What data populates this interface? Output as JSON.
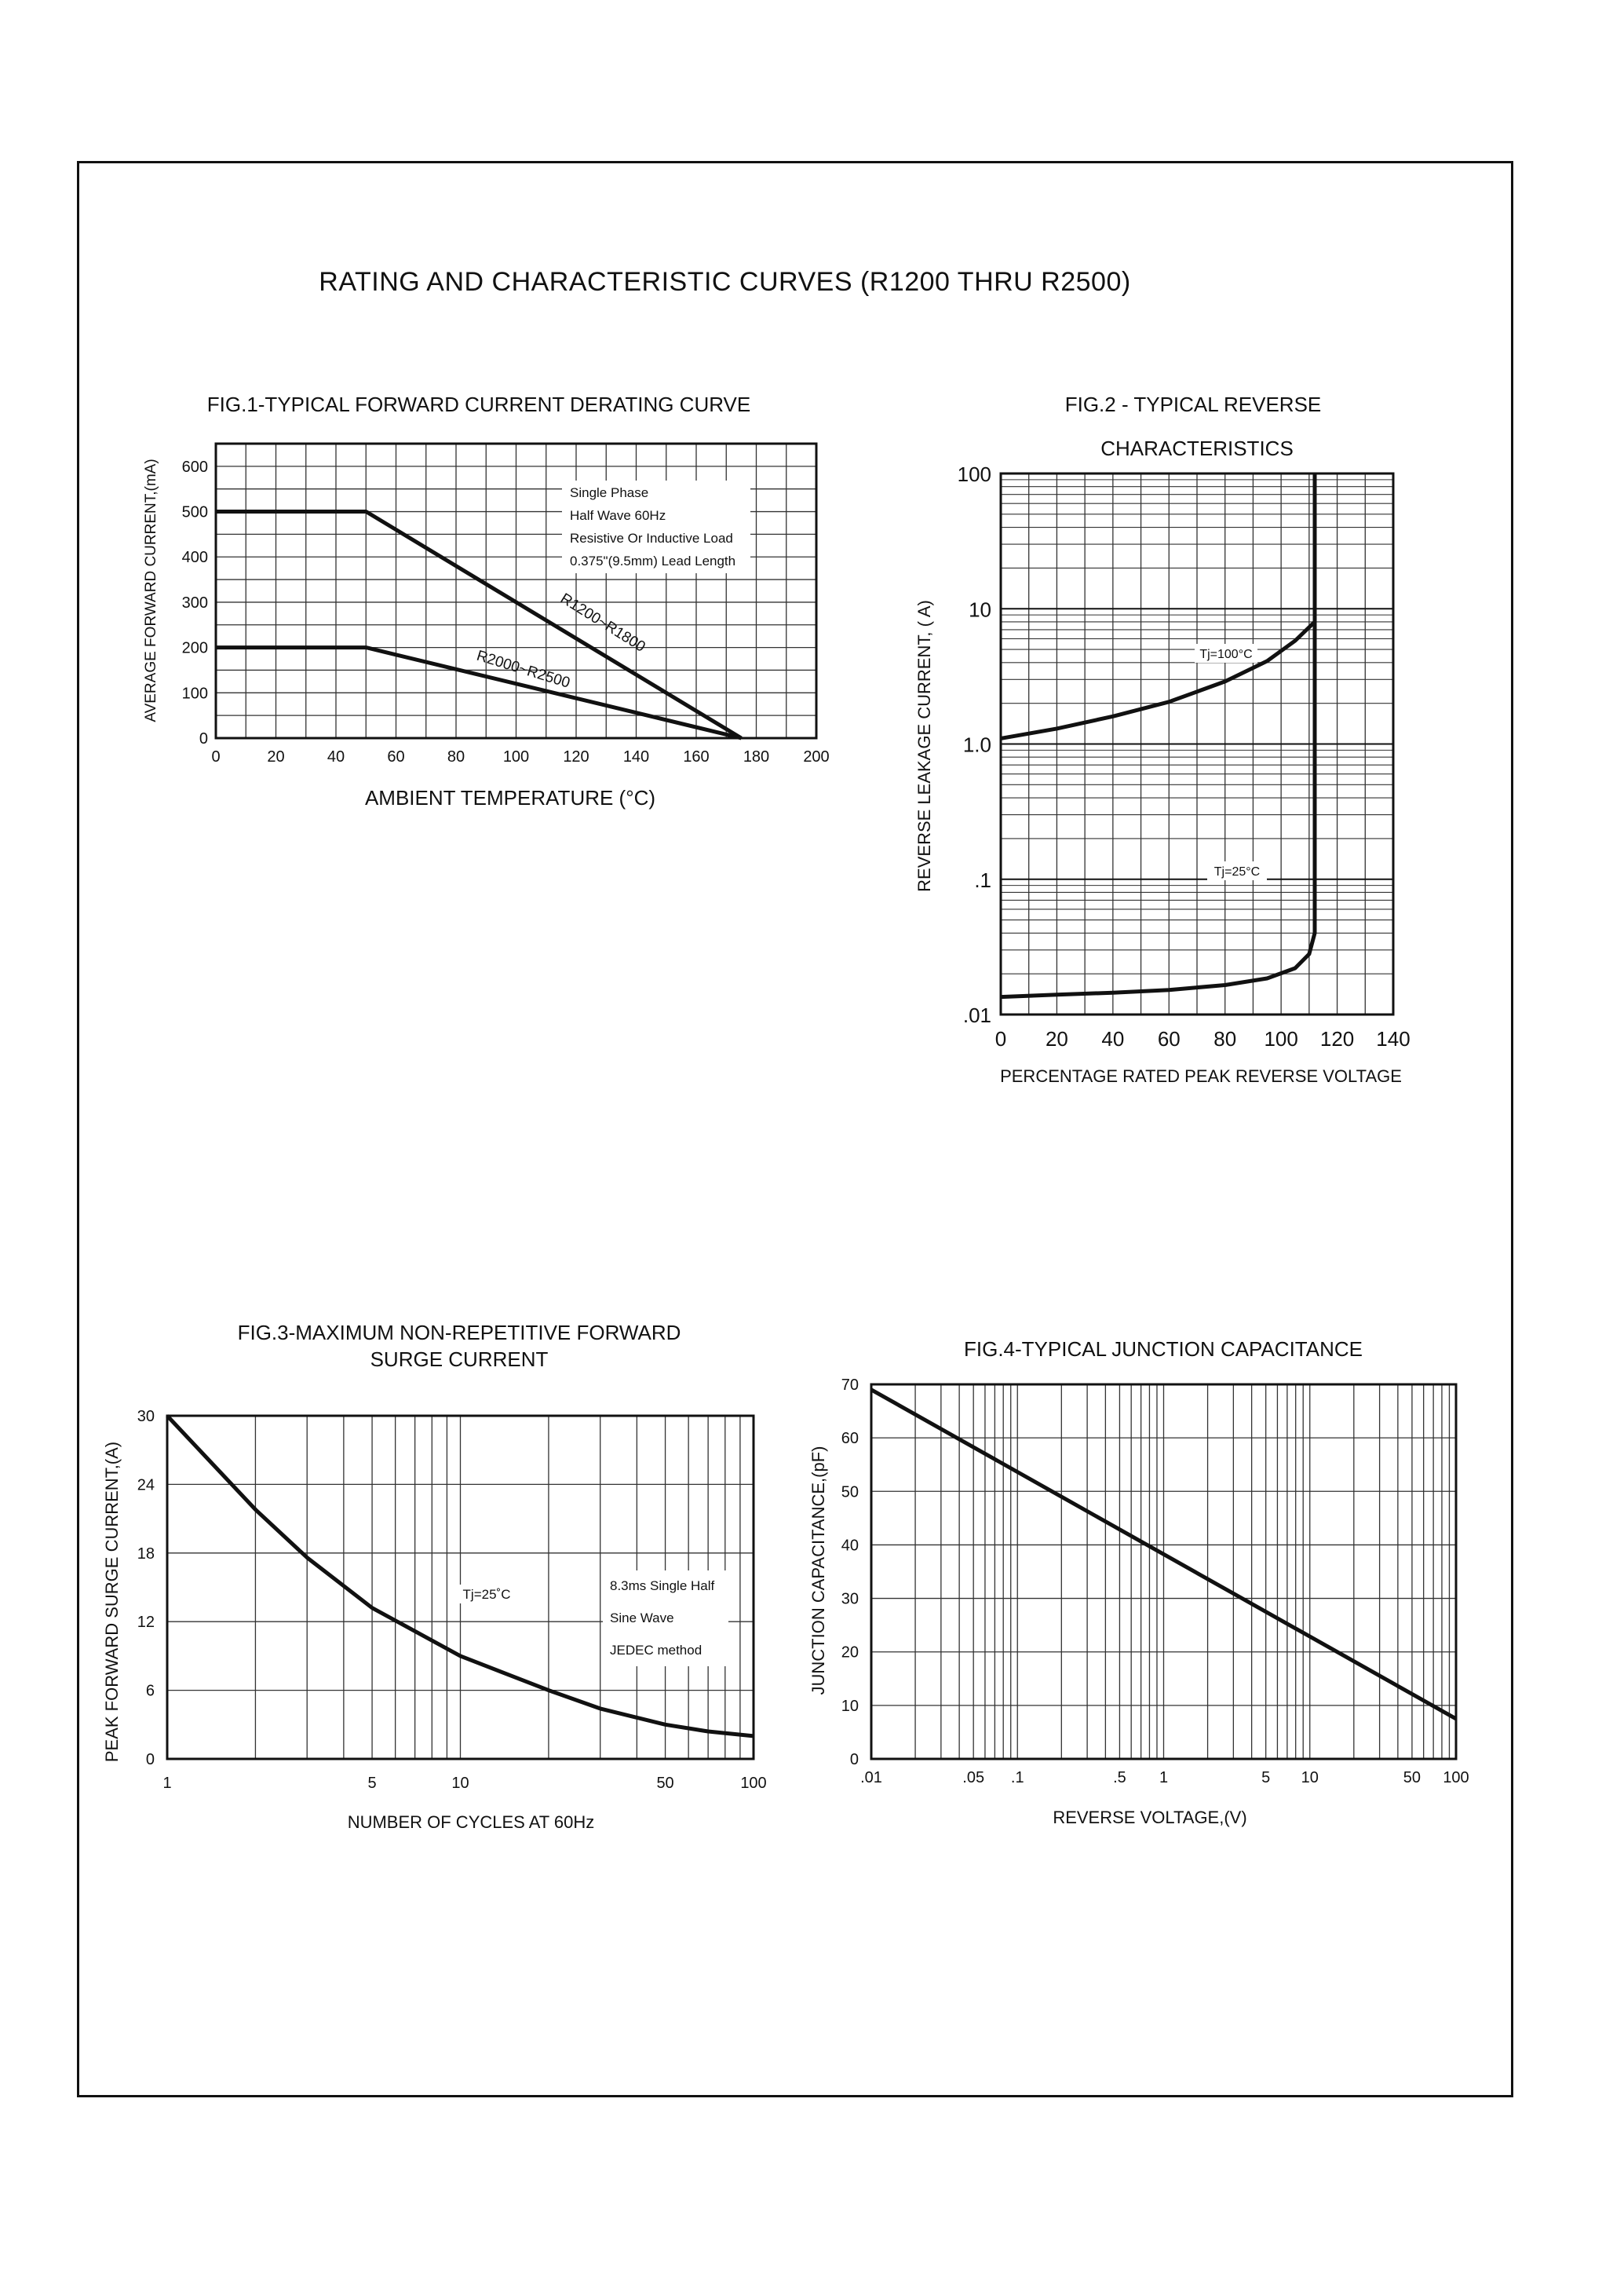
{
  "page": {
    "title": "RATING AND CHARACTERISTIC CURVES (R1200 THRU R2500)"
  },
  "chart_data": [
    {
      "id": "fig1",
      "type": "line",
      "title": "FIG.1-TYPICAL FORWARD CURRENT DERATING CURVE",
      "xlabel": "AMBIENT TEMPERATURE (°C)",
      "ylabel": "AVERAGE FORWARD CURRENT,(mA)",
      "xlim": [
        0,
        200
      ],
      "ylim": [
        0,
        650
      ],
      "xticks": [
        0,
        20,
        40,
        60,
        80,
        100,
        120,
        140,
        160,
        180,
        200
      ],
      "yticks": [
        0,
        100,
        200,
        300,
        400,
        500,
        600
      ],
      "grid": true,
      "annotation_lines": [
        "Single Phase",
        "Half Wave 60Hz",
        "Resistive Or Inductive Load",
        "0.375\"(9.5mm) Lead Length"
      ],
      "series": [
        {
          "name": "R1200~R1800",
          "x": [
            0,
            50,
            175
          ],
          "y": [
            500,
            500,
            0
          ]
        },
        {
          "name": "R2000~R2500",
          "x": [
            0,
            50,
            175
          ],
          "y": [
            200,
            200,
            0
          ]
        }
      ]
    },
    {
      "id": "fig2",
      "type": "line",
      "title": "FIG.2 - TYPICAL REVERSE",
      "subtitle": "CHARACTERISTICS",
      "xlabel": "PERCENTAGE RATED PEAK REVERSE VOLTAGE",
      "ylabel": "REVERSE LEAKAGE CURRENT, ( A)",
      "xlim": [
        0,
        140
      ],
      "ylim": [
        0.01,
        100
      ],
      "yscale": "log",
      "xticks": [
        0,
        20,
        40,
        60,
        80,
        100,
        120,
        140
      ],
      "yticks": [
        0.01,
        0.1,
        1,
        10,
        100
      ],
      "ytick_labels": [
        ".01",
        ".1",
        "1.0",
        "10",
        "100"
      ],
      "grid": true,
      "series": [
        {
          "name": "Tj=100°C",
          "x": [
            0,
            20,
            40,
            60,
            80,
            95,
            105,
            112,
            112
          ],
          "y": [
            1.1,
            1.3,
            1.6,
            2.05,
            2.9,
            4.1,
            5.8,
            8.0,
            100
          ]
        },
        {
          "name": "Tj=25°C",
          "x": [
            0,
            20,
            40,
            60,
            80,
            95,
            105,
            110,
            112,
            112
          ],
          "y": [
            0.0135,
            0.014,
            0.0145,
            0.0152,
            0.0165,
            0.0185,
            0.022,
            0.028,
            0.04,
            100
          ]
        }
      ]
    },
    {
      "id": "fig3",
      "type": "line",
      "title": "FIG.3-MAXIMUM NON-REPETITIVE FORWARD",
      "subtitle": "SURGE CURRENT",
      "xlabel": "NUMBER OF CYCLES AT 60Hz",
      "ylabel": "PEAK FORWARD SURGE CURRENT,(A)",
      "xlim": [
        1,
        100
      ],
      "xscale": "log",
      "ylim": [
        0,
        30
      ],
      "xticks": [
        1,
        5,
        10,
        50,
        100
      ],
      "yticks": [
        0,
        6,
        12,
        18,
        24,
        30
      ],
      "grid": true,
      "annotation_temp": "Tj=25˚C",
      "annotation_lines": [
        "8.3ms Single Half",
        "Sine Wave",
        "JEDEC method"
      ],
      "series": [
        {
          "name": "",
          "x": [
            1,
            2,
            3,
            5,
            10,
            20,
            30,
            50,
            70,
            100
          ],
          "y": [
            30,
            21.8,
            17.6,
            13.2,
            9.0,
            6.0,
            4.4,
            3.0,
            2.4,
            2.0
          ]
        }
      ]
    },
    {
      "id": "fig4",
      "type": "line",
      "title": "FIG.4-TYPICAL JUNCTION CAPACITANCE",
      "xlabel": "REVERSE VOLTAGE,(V)",
      "ylabel": "JUNCTION CAPACITANCE,(pF)",
      "xlim": [
        0.01,
        100
      ],
      "xscale": "log",
      "ylim": [
        0,
        70
      ],
      "xticks": [
        0.01,
        0.05,
        0.1,
        0.5,
        1,
        5,
        10,
        50,
        100
      ],
      "xtick_labels": [
        ".01",
        ".05",
        ".1",
        ".5",
        "1",
        "5",
        "10",
        "50",
        "100"
      ],
      "yticks": [
        0,
        10,
        20,
        30,
        40,
        50,
        60,
        70
      ],
      "grid": true,
      "series": [
        {
          "name": "",
          "x": [
            0.01,
            100
          ],
          "y": [
            69,
            7.5
          ]
        }
      ]
    }
  ]
}
